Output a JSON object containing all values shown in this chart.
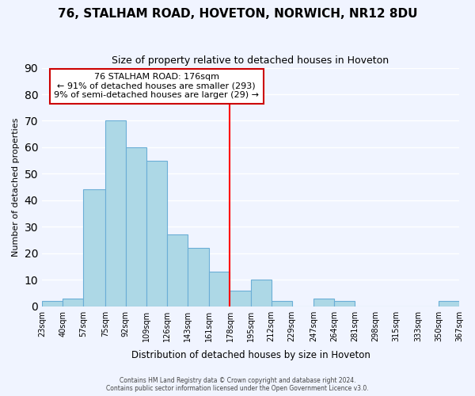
{
  "title": "76, STALHAM ROAD, HOVETON, NORWICH, NR12 8DU",
  "subtitle": "Size of property relative to detached houses in Hoveton",
  "xlabel": "Distribution of detached houses by size in Hoveton",
  "ylabel": "Number of detached properties",
  "bin_edges": [
    23,
    40,
    57,
    75,
    92,
    109,
    126,
    143,
    161,
    178,
    195,
    212,
    229,
    247,
    264,
    281,
    298,
    315,
    333,
    350,
    367
  ],
  "bar_heights": [
    2,
    3,
    44,
    70,
    60,
    55,
    27,
    22,
    13,
    6,
    10,
    2,
    0,
    3,
    2,
    0,
    0,
    0,
    0,
    2
  ],
  "bar_color": "#add8e6",
  "bar_edge_color": "#6baed6",
  "vline_x": 178,
  "vline_color": "#ff0000",
  "ylim": [
    0,
    90
  ],
  "yticks": [
    0,
    10,
    20,
    30,
    40,
    50,
    60,
    70,
    80,
    90
  ],
  "tick_labels": [
    "23sqm",
    "40sqm",
    "57sqm",
    "75sqm",
    "92sqm",
    "109sqm",
    "126sqm",
    "143sqm",
    "161sqm",
    "178sqm",
    "195sqm",
    "212sqm",
    "229sqm",
    "247sqm",
    "264sqm",
    "281sqm",
    "298sqm",
    "315sqm",
    "333sqm",
    "350sqm",
    "367sqm"
  ],
  "annotation_title": "76 STALHAM ROAD: 176sqm",
  "annotation_line1": "← 91% of detached houses are smaller (293)",
  "annotation_line2": "9% of semi-detached houses are larger (29) →",
  "annotation_box_color": "#ffffff",
  "annotation_box_edge": "#cc0000",
  "footer1": "Contains HM Land Registry data © Crown copyright and database right 2024.",
  "footer2": "Contains public sector information licensed under the Open Government Licence v3.0.",
  "background_color": "#f0f4ff",
  "grid_color": "#ffffff"
}
